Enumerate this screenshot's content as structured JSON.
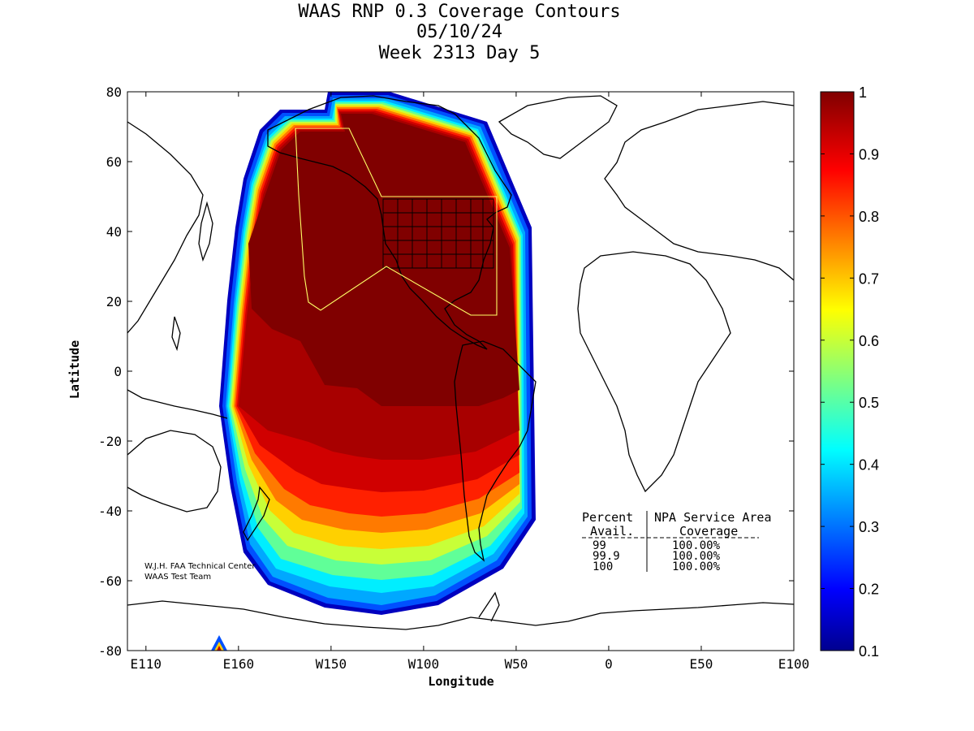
{
  "title": {
    "line1": "WAAS RNP 0.3 Coverage Contours",
    "line2": "05/10/24",
    "line3": "Week 2313 Day 5"
  },
  "axes": {
    "xlabel": "Longitude",
    "ylabel": "Latitude",
    "x_ticks": [
      {
        "lon": 110,
        "label": "E110"
      },
      {
        "lon": 160,
        "label": "E160"
      },
      {
        "lon": 210,
        "label": "W150"
      },
      {
        "lon": 260,
        "label": "W100"
      },
      {
        "lon": 310,
        "label": "W50"
      },
      {
        "lon": 360,
        "label": "0"
      },
      {
        "lon": 410,
        "label": "E50"
      },
      {
        "lon": 460,
        "label": "E100"
      }
    ],
    "y_ticks": [
      {
        "lat": 80,
        "label": "80"
      },
      {
        "lat": 60,
        "label": "60"
      },
      {
        "lat": 40,
        "label": "40"
      },
      {
        "lat": 20,
        "label": "20"
      },
      {
        "lat": 0,
        "label": "0"
      },
      {
        "lat": -20,
        "label": "-20"
      },
      {
        "lat": -40,
        "label": "-40"
      },
      {
        "lat": -60,
        "label": "-60"
      },
      {
        "lat": -80,
        "label": "-80"
      }
    ],
    "lon_range": [
      100,
      460
    ],
    "lat_range": [
      -80,
      80
    ]
  },
  "colorbar": {
    "range": [
      0.1,
      1
    ],
    "ticks": [
      "1",
      "0.9",
      "0.8",
      "0.7",
      "0.6",
      "0.5",
      "0.4",
      "0.3",
      "0.2",
      "0.1"
    ],
    "colormap": "jet"
  },
  "table": {
    "header1_left": "Percent",
    "header1_right": "NPA Service Area",
    "header2_left": "Avail.",
    "header2_right": "Coverage",
    "rows": [
      {
        "avail": "99",
        "coverage": "100.00%"
      },
      {
        "avail": "99.9",
        "coverage": "100.00%"
      },
      {
        "avail": "100",
        "coverage": "100.00%"
      }
    ]
  },
  "credit": {
    "line1": "W.J.H. FAA Technical Center",
    "line2": "WAAS Test Team"
  },
  "chart_data": {
    "type": "heatmap",
    "title": "WAAS RNP 0.3 Coverage Contours",
    "xlabel": "Longitude",
    "ylabel": "Latitude",
    "description_values": "Availability contours 0.1 to 1 over the Americas / Pacific",
    "service_area_coverage": [
      {
        "percent_avail": 99,
        "coverage_pct": 100.0
      },
      {
        "percent_avail": 99.9,
        "coverage_pct": 100.0
      },
      {
        "percent_avail": 100,
        "coverage_pct": 100.0
      }
    ],
    "colors": {
      "max": "#800000",
      "min": "#00008f"
    }
  }
}
